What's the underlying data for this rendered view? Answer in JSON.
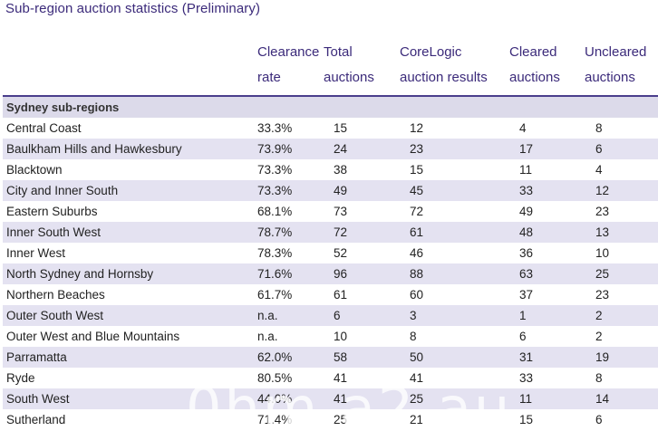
{
  "title": "Sub-region auction statistics (Preliminary)",
  "headers": [
    "",
    "Clearance\nrate",
    "Total\nauctions",
    "CoreLogic\nauction results",
    "Cleared\nauctions",
    "Uncleared\nauctions"
  ],
  "section_label": "Sydney sub-regions",
  "rows": [
    [
      "Central Coast",
      "33.3%",
      "15",
      "12",
      "4",
      "8"
    ],
    [
      "Baulkham Hills and Hawkesbury",
      "73.9%",
      "24",
      "23",
      "17",
      "6"
    ],
    [
      "Blacktown",
      "73.3%",
      "38",
      "15",
      "11",
      "4"
    ],
    [
      "City and Inner South",
      "73.3%",
      "49",
      "45",
      "33",
      "12"
    ],
    [
      "Eastern Suburbs",
      "68.1%",
      "73",
      "72",
      "49",
      "23"
    ],
    [
      "Inner South West",
      "78.7%",
      "72",
      "61",
      "48",
      "13"
    ],
    [
      "Inner West",
      "78.3%",
      "52",
      "46",
      "36",
      "10"
    ],
    [
      "North Sydney and Hornsby",
      "71.6%",
      "96",
      "88",
      "63",
      "25"
    ],
    [
      "Northern Beaches",
      "61.7%",
      "61",
      "60",
      "37",
      "23"
    ],
    [
      "Outer South West",
      "n.a.",
      "6",
      "3",
      "1",
      "2"
    ],
    [
      "Outer West and Blue Mountains",
      "n.a.",
      "10",
      "8",
      "6",
      "2"
    ],
    [
      "Parramatta",
      "62.0%",
      "58",
      "50",
      "31",
      "19"
    ],
    [
      "Ryde",
      "80.5%",
      "41",
      "41",
      "33",
      "8"
    ],
    [
      "South West",
      "44.0%",
      "41",
      "25",
      "11",
      "14"
    ],
    [
      "Sutherland",
      "71.4%",
      "25",
      "21",
      "15",
      "6"
    ]
  ],
  "watermark": "0hm.a2.au"
}
